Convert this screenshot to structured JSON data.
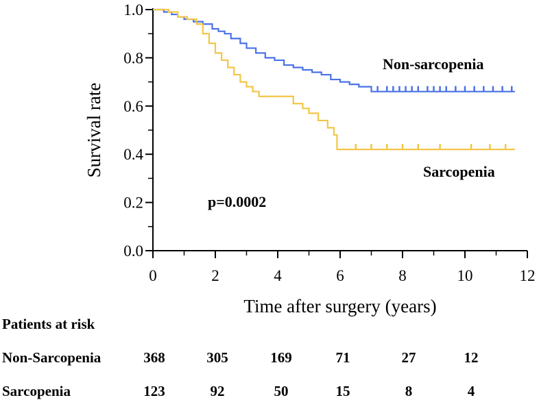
{
  "chart_data": {
    "type": "line",
    "title": "",
    "xlabel": "Time after surgery (years)",
    "ylabel": "Survival rate",
    "xlim": [
      0,
      12
    ],
    "ylim": [
      0.0,
      1.0
    ],
    "xticks": [
      0,
      2,
      4,
      6,
      8,
      10,
      12
    ],
    "yticks": [
      "0.0",
      "0.2",
      "0.4",
      "0.6",
      "0.8",
      "1.0"
    ],
    "annotation": "p=0.0002",
    "series": [
      {
        "name": "Non-sarcopenia",
        "color": "#4a72e6",
        "x": [
          0,
          0.35,
          0.6,
          0.8,
          1.0,
          1.3,
          1.6,
          1.9,
          2.1,
          2.3,
          2.5,
          2.8,
          3.0,
          3.3,
          3.6,
          3.9,
          4.2,
          4.5,
          4.8,
          5.1,
          5.4,
          5.7,
          6.0,
          6.3,
          6.6,
          7.0,
          11.6
        ],
        "y": [
          1.0,
          0.99,
          0.98,
          0.97,
          0.96,
          0.95,
          0.94,
          0.92,
          0.91,
          0.9,
          0.88,
          0.86,
          0.84,
          0.82,
          0.8,
          0.79,
          0.77,
          0.76,
          0.75,
          0.74,
          0.73,
          0.71,
          0.7,
          0.69,
          0.68,
          0.66,
          0.66
        ],
        "censored_x": [
          7.2,
          7.5,
          7.7,
          7.9,
          8.1,
          8.3,
          8.5,
          8.8,
          9.0,
          9.2,
          9.4,
          9.7,
          10.0,
          10.3,
          10.6,
          10.9,
          11.2,
          11.5
        ]
      },
      {
        "name": "Sarcopenia",
        "color": "#f2c545",
        "x": [
          0,
          0.5,
          0.8,
          1.1,
          1.4,
          1.6,
          1.8,
          2.0,
          2.2,
          2.4,
          2.6,
          2.8,
          3.0,
          3.2,
          3.4,
          4.5,
          4.8,
          5.0,
          5.3,
          5.6,
          5.8,
          5.9,
          11.6
        ],
        "y": [
          1.0,
          0.99,
          0.97,
          0.96,
          0.94,
          0.9,
          0.86,
          0.82,
          0.79,
          0.76,
          0.73,
          0.7,
          0.68,
          0.66,
          0.64,
          0.61,
          0.59,
          0.57,
          0.54,
          0.51,
          0.48,
          0.42,
          0.42
        ],
        "censored_x": [
          6.5,
          7.0,
          7.5,
          8.0,
          8.5,
          9.2,
          10.2,
          10.8,
          11.3
        ]
      }
    ],
    "risk_table": {
      "header": "Patients at risk",
      "rows": [
        {
          "label": "Non-Sarcopenia",
          "values": [
            "368",
            "305",
            "169",
            "71",
            "27",
            "12"
          ]
        },
        {
          "label": "Sarcopenia",
          "values": [
            "123",
            "92",
            "50",
            "15",
            "8",
            "4"
          ]
        }
      ]
    }
  }
}
